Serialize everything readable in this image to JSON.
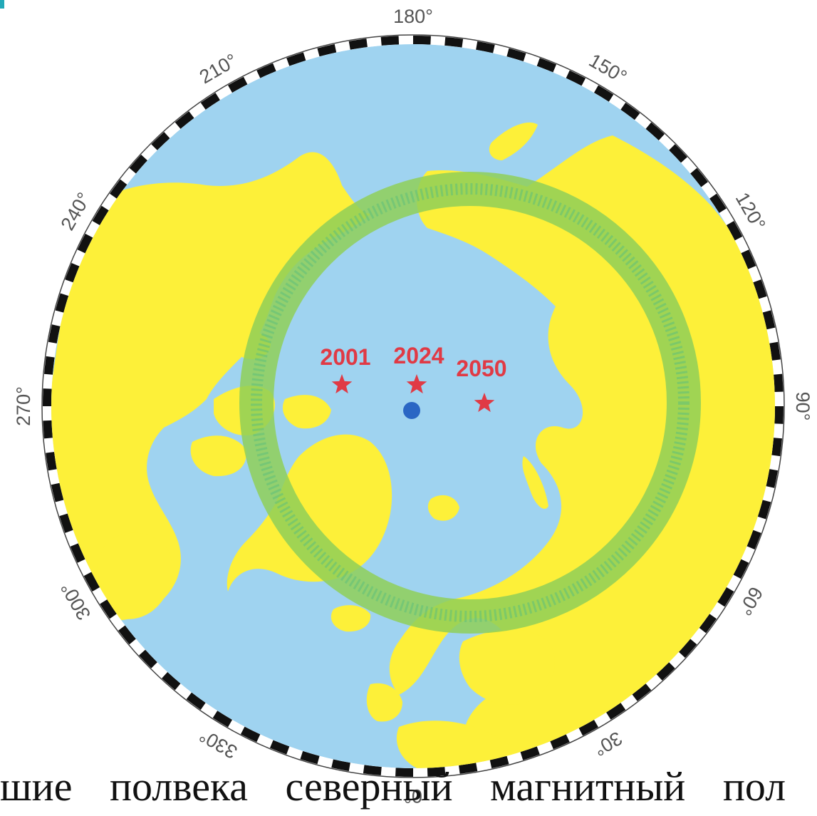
{
  "colors": {
    "ocean": "#9fd3f0",
    "land": "#fdf039",
    "auroral_oval": "#8fcf58",
    "pole_star": "#e03a45",
    "geographic_pole": "#2a66c4",
    "rim_dark": "#111111",
    "rim_light": "#ffffff",
    "accent": "#22a9b8"
  },
  "map": {
    "degree_labels": [
      "180°",
      "150°",
      "120°",
      "90°",
      "60°",
      "30°",
      "0°",
      "330°",
      "300°",
      "270°",
      "240°",
      "210°"
    ],
    "pole_positions": [
      {
        "year": "2001",
        "icon": "star-icon"
      },
      {
        "year": "2024",
        "icon": "star-icon"
      },
      {
        "year": "2050",
        "icon": "star-icon"
      }
    ],
    "geographic_pole_icon": "dot-icon"
  },
  "caption": {
    "text": "шие полвека северный магнитный пол"
  }
}
